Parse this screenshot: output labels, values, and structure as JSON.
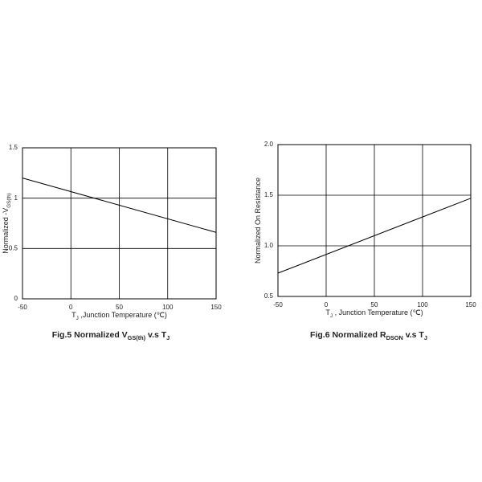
{
  "chart_data": [
    {
      "type": "line",
      "title": [
        "Fig.5 Normalized V",
        "GS(th)",
        " v.s T",
        "J"
      ],
      "xlabel": [
        "T",
        "J",
        " ,Junction Temperature (℃)"
      ],
      "ylabel": [
        "Normalized -V",
        "GS(th)"
      ],
      "x": [
        -50,
        150
      ],
      "series": [
        {
          "color": "#000000",
          "values": [
            1.2,
            0.66
          ]
        }
      ],
      "xlim": [
        -50,
        150
      ],
      "xticks": [
        -50,
        0,
        50,
        100,
        150
      ],
      "ylim": [
        0,
        1.5
      ],
      "yticks": [
        0,
        0.5,
        1,
        1.5
      ],
      "grid": true
    },
    {
      "type": "line",
      "title": [
        "Fig.6 Normalized R",
        "DSON",
        " v.s T",
        "J"
      ],
      "xlabel": [
        "T",
        "J",
        " , Junction Temperature (℃)"
      ],
      "ylabel": [
        "Normalized On Resistance"
      ],
      "x": [
        -50,
        150
      ],
      "series": [
        {
          "color": "#000000",
          "values": [
            0.73,
            1.47
          ]
        }
      ],
      "xlim": [
        -50,
        150
      ],
      "xticks": [
        -50,
        0,
        50,
        100,
        150
      ],
      "ylim": [
        0.5,
        2.0
      ],
      "yticks": [
        0.5,
        {
          "value": 1,
          "label": "1.0"
        },
        1.5,
        {
          "value": 2,
          "label": "2.0"
        }
      ],
      "grid": true
    }
  ]
}
